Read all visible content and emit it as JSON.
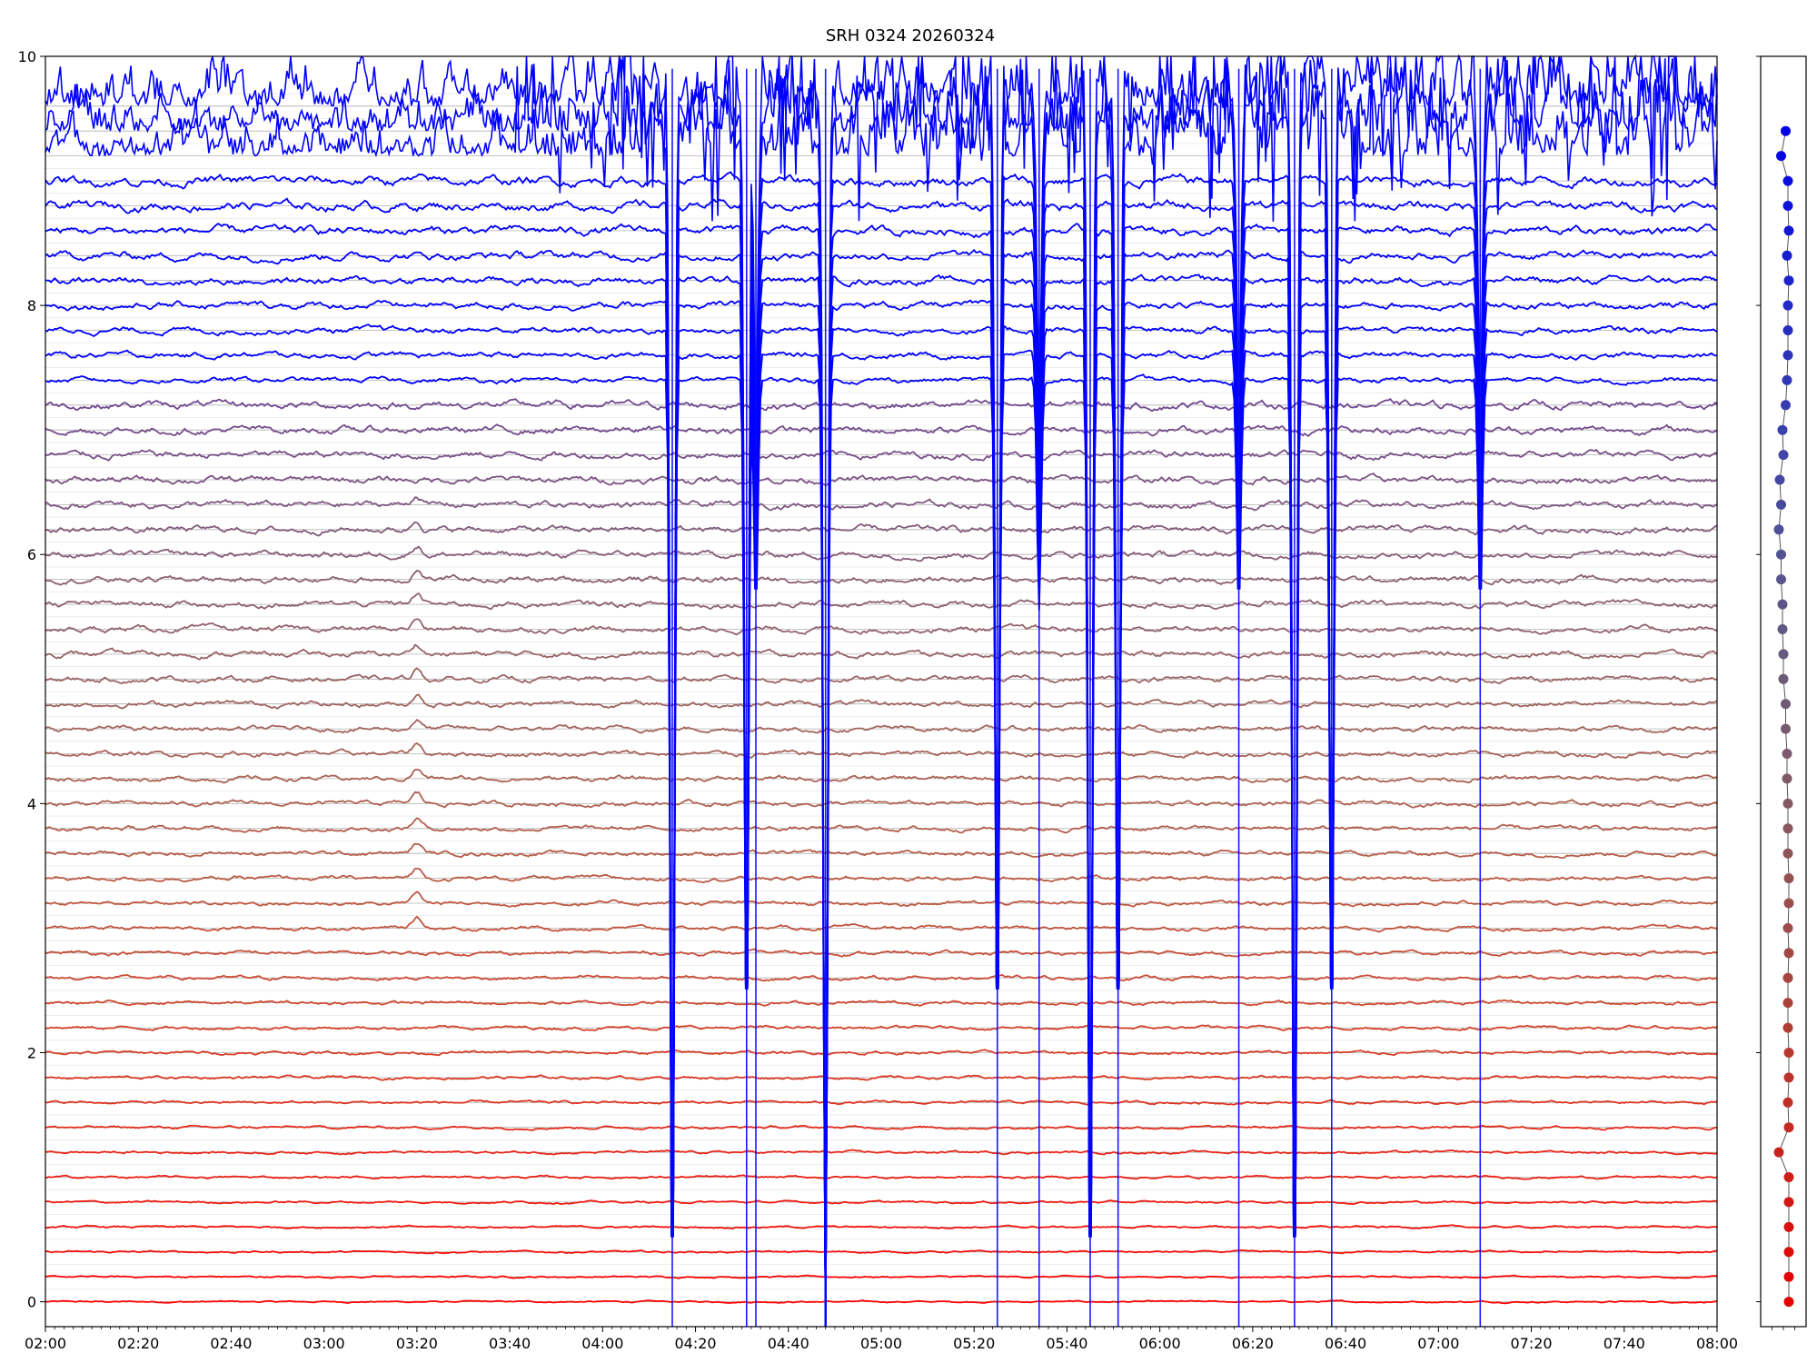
{
  "chart_data": {
    "type": "line",
    "title": "SRH 0324 20260324",
    "xlabel": "",
    "ylabel": "",
    "x_range": [
      "02:00",
      "08:00"
    ],
    "xlim_minutes": [
      120,
      480
    ],
    "ylim": [
      -0.2,
      10
    ],
    "x_ticks": [
      "02:00",
      "02:20",
      "02:40",
      "03:00",
      "03:20",
      "03:40",
      "04:00",
      "04:20",
      "04:40",
      "05:00",
      "05:20",
      "05:40",
      "06:00",
      "06:20",
      "06:40",
      "07:00",
      "07:20",
      "07:40",
      "08:00"
    ],
    "y_ticks": [
      0,
      2,
      4,
      6,
      8,
      10
    ],
    "grid": "horizontal lines at each trace baseline",
    "n_traces": 49,
    "trace_spacing": 0.2,
    "color_start": "#ff0000",
    "color_end": "#0000ff",
    "series_note_events": [
      {
        "time": "03:20",
        "kind": "small positive bump on mid traces"
      },
      {
        "time": "04:15",
        "kind": "deep negative spike"
      },
      {
        "time": "04:31",
        "kind": "deep negative spike"
      },
      {
        "time": "04:33",
        "kind": "deep negative spike"
      },
      {
        "time": "04:48",
        "kind": "deep negative spike"
      },
      {
        "time": "05:25",
        "kind": "deep negative spike"
      },
      {
        "time": "05:34",
        "kind": "deep negative spike"
      },
      {
        "time": "05:45",
        "kind": "deep negative spike"
      },
      {
        "time": "05:51",
        "kind": "deep negative spike"
      },
      {
        "time": "06:17",
        "kind": "deep negative spike"
      },
      {
        "time": "06:29",
        "kind": "deep negative spike"
      },
      {
        "time": "06:37",
        "kind": "deep negative spike"
      },
      {
        "time": "07:09",
        "kind": "deep negative spike"
      }
    ],
    "side_panel": {
      "type": "scatter",
      "ylim": [
        -0.2,
        10
      ],
      "points": [
        {
          "x": 0.55,
          "y": 9.4
        },
        {
          "x": 0.45,
          "y": 9.2
        },
        {
          "x": 0.6,
          "y": 9.0
        },
        {
          "x": 0.6,
          "y": 8.8
        },
        {
          "x": 0.62,
          "y": 8.6
        },
        {
          "x": 0.58,
          "y": 8.4
        },
        {
          "x": 0.62,
          "y": 8.2
        },
        {
          "x": 0.6,
          "y": 8.0
        },
        {
          "x": 0.6,
          "y": 7.8
        },
        {
          "x": 0.6,
          "y": 7.6
        },
        {
          "x": 0.58,
          "y": 7.4
        },
        {
          "x": 0.55,
          "y": 7.2
        },
        {
          "x": 0.48,
          "y": 7.0
        },
        {
          "x": 0.5,
          "y": 6.8
        },
        {
          "x": 0.42,
          "y": 6.6
        },
        {
          "x": 0.45,
          "y": 6.4
        },
        {
          "x": 0.4,
          "y": 6.2
        },
        {
          "x": 0.45,
          "y": 6.0
        },
        {
          "x": 0.45,
          "y": 5.8
        },
        {
          "x": 0.48,
          "y": 5.6
        },
        {
          "x": 0.48,
          "y": 5.4
        },
        {
          "x": 0.5,
          "y": 5.2
        },
        {
          "x": 0.5,
          "y": 5.0
        },
        {
          "x": 0.55,
          "y": 4.8
        },
        {
          "x": 0.55,
          "y": 4.6
        },
        {
          "x": 0.58,
          "y": 4.4
        },
        {
          "x": 0.58,
          "y": 4.2
        },
        {
          "x": 0.6,
          "y": 4.0
        },
        {
          "x": 0.6,
          "y": 3.8
        },
        {
          "x": 0.6,
          "y": 3.6
        },
        {
          "x": 0.62,
          "y": 3.4
        },
        {
          "x": 0.62,
          "y": 3.2
        },
        {
          "x": 0.6,
          "y": 3.0
        },
        {
          "x": 0.62,
          "y": 2.8
        },
        {
          "x": 0.6,
          "y": 2.6
        },
        {
          "x": 0.6,
          "y": 2.4
        },
        {
          "x": 0.6,
          "y": 2.2
        },
        {
          "x": 0.62,
          "y": 2.0
        },
        {
          "x": 0.62,
          "y": 1.8
        },
        {
          "x": 0.6,
          "y": 1.6
        },
        {
          "x": 0.62,
          "y": 1.4
        },
        {
          "x": 0.4,
          "y": 1.2
        },
        {
          "x": 0.62,
          "y": 1.0
        },
        {
          "x": 0.62,
          "y": 0.8
        },
        {
          "x": 0.62,
          "y": 0.6
        },
        {
          "x": 0.62,
          "y": 0.4
        },
        {
          "x": 0.62,
          "y": 0.2
        },
        {
          "x": 0.62,
          "y": 0.0
        }
      ]
    }
  }
}
